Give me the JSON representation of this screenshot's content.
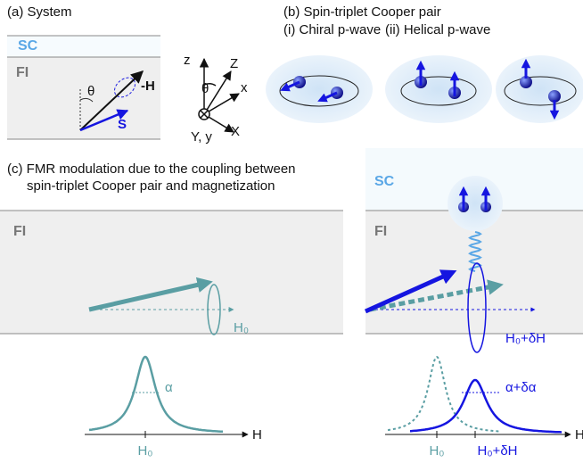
{
  "panel_a": {
    "title": "(a) System",
    "sc_label": "SC",
    "fi_label": "FI",
    "theta": "θ",
    "field_label": "-H",
    "spin_label": "S",
    "axes": {
      "z": "z",
      "Z": "Z",
      "theta": "θ",
      "x": "x",
      "y": "Y, y",
      "X": "X"
    }
  },
  "panel_b": {
    "title": "(b) Spin-triplet Cooper pair",
    "chiral": "(i) Chiral p-wave",
    "helical": "(ii) Helical p-wave"
  },
  "panel_c": {
    "title_line1": "(c) FMR modulation due to the coupling between",
    "title_line2": "spin-triplet Cooper pair and magnetization",
    "left": {
      "fi_label": "FI",
      "field_label": "H₀",
      "damping_label": "α",
      "axis_label": "H",
      "peak_label": "H₀"
    },
    "right": {
      "sc_label": "SC",
      "fi_label": "FI",
      "field_label": "H₀+δH",
      "damping_label": "α+δα",
      "axis_label": "H",
      "peak_label_old": "H₀",
      "peak_label_new": "H₀+δH"
    }
  }
}
